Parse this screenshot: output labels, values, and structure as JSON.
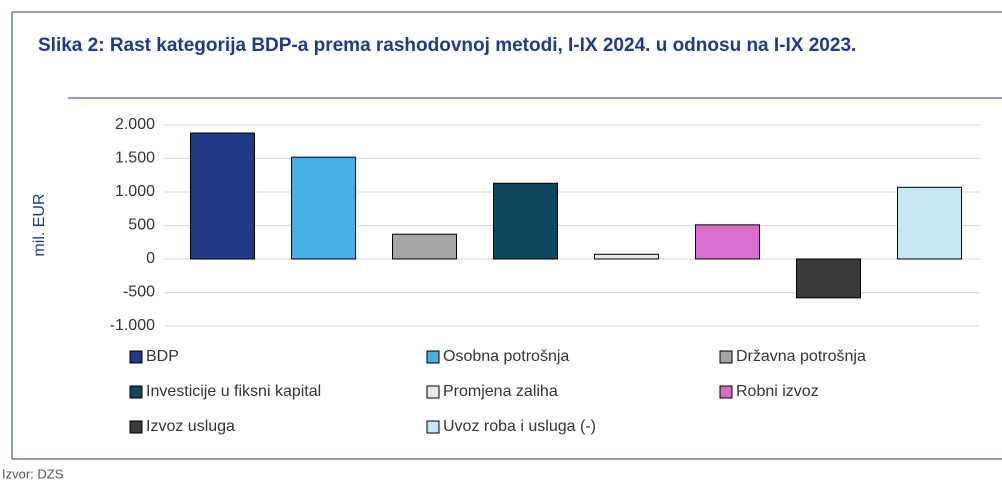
{
  "chart_data": {
    "type": "bar",
    "title": "Slika 2: Rast kategorija BDP-a prema rashodovnoj metodi, I-IX 2024. u odnosu na I-IX 2023.",
    "y_label": "mil. EUR",
    "source": "Izvor: DZS",
    "categories": [
      null
    ],
    "series": [
      {
        "name": "BDP",
        "color": "#1f3a87",
        "values": [
          1880
        ]
      },
      {
        "name": "Osobna potrošnja",
        "color": "#45b0e3",
        "values": [
          1520
        ]
      },
      {
        "name": "Državna potrošnja",
        "color": "#a5a5a5",
        "values": [
          370
        ]
      },
      {
        "name": "Investicije u fiksni kapital",
        "color": "#10465e",
        "values": [
          1130
        ]
      },
      {
        "name": "Promjena zaliha",
        "color": "#e8e8e8",
        "values": [
          70
        ]
      },
      {
        "name": "Robni izvoz",
        "color": "#d86fcc",
        "values": [
          510
        ]
      },
      {
        "name": "Izvoz usluga",
        "color": "#3a3a3a",
        "values": [
          -580
        ]
      },
      {
        "name": "Uvoz roba i usluga (-)",
        "color": "#c5e6f5",
        "values": [
          1070
        ]
      }
    ],
    "ylim": [
      -1000,
      2000
    ],
    "yticks": [
      {
        "value": -1000,
        "label": "-1.000"
      },
      -500,
      0,
      500,
      {
        "value": 1000,
        "label": "1.000"
      },
      {
        "value": 1500,
        "label": "1.500"
      },
      {
        "value": 2000,
        "label": "2.000"
      }
    ],
    "grid": true,
    "legend": "bottom"
  }
}
